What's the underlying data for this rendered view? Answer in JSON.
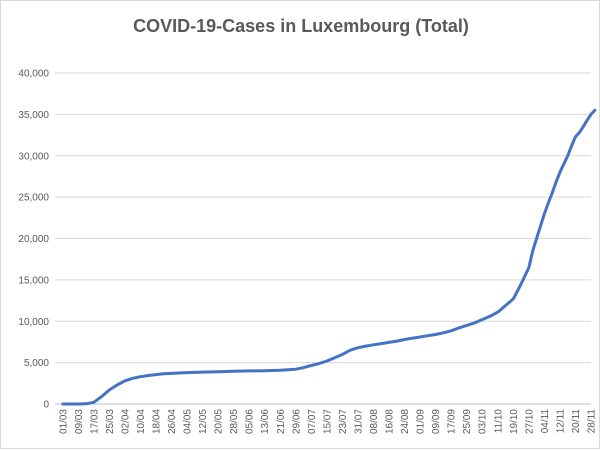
{
  "chart_data": {
    "type": "line",
    "title": "COVID-19-Cases in Luxembourg (Total)",
    "xlabel": "",
    "ylabel": "",
    "ylim": [
      0,
      40000
    ],
    "yticks": [
      "0",
      "5,000",
      "10,000",
      "15,000",
      "20,000",
      "25,000",
      "30,000",
      "35,000",
      "40,000"
    ],
    "xticks": [
      "01/03",
      "09/03",
      "17/03",
      "25/03",
      "02/04",
      "10/04",
      "18/04",
      "26/04",
      "04/05",
      "12/05",
      "20/05",
      "28/05",
      "05/06",
      "13/06",
      "21/06",
      "29/06",
      "07/07",
      "15/07",
      "23/07",
      "31/07",
      "08/08",
      "16/08",
      "24/08",
      "01/09",
      "09/09",
      "17/09",
      "25/09",
      "03/10",
      "11/10",
      "19/10",
      "27/10",
      "04/11",
      "12/11",
      "20/11",
      "28/11"
    ],
    "grid": true,
    "legend": "none",
    "line_color": "#4472c4",
    "series": [
      {
        "x": [
          "01/03",
          "09/03",
          "13/03",
          "17/03",
          "21/03",
          "25/03",
          "29/03",
          "02/04",
          "06/04",
          "10/04",
          "14/04",
          "18/04",
          "22/04",
          "26/04",
          "30/04",
          "04/05",
          "12/05",
          "20/05",
          "28/05",
          "05/06",
          "13/06",
          "21/06",
          "29/06",
          "03/07",
          "07/07",
          "11/07",
          "15/07",
          "19/07",
          "23/07",
          "27/07",
          "31/07",
          "04/08",
          "08/08",
          "12/08",
          "16/08",
          "20/08",
          "24/08",
          "28/08",
          "01/09",
          "05/09",
          "09/09",
          "13/09",
          "17/09",
          "21/09",
          "25/09",
          "29/09",
          "03/10",
          "07/10",
          "11/10",
          "15/10",
          "19/10",
          "23/10",
          "25/10",
          "27/10",
          "29/10",
          "31/10",
          "02/11",
          "04/11",
          "06/11",
          "08/11",
          "10/11",
          "12/11",
          "14/11",
          "16/11",
          "18/11",
          "20/11",
          "22/11",
          "24/11",
          "26/11",
          "28/11",
          "30/11"
        ],
        "values": [
          0,
          5,
          30,
          200,
          900,
          1700,
          2300,
          2800,
          3100,
          3300,
          3450,
          3550,
          3650,
          3700,
          3750,
          3800,
          3850,
          3900,
          3950,
          4000,
          4020,
          4080,
          4200,
          4400,
          4650,
          4900,
          5200,
          5600,
          6000,
          6500,
          6800,
          7000,
          7150,
          7300,
          7450,
          7600,
          7800,
          7950,
          8100,
          8250,
          8400,
          8600,
          8850,
          9200,
          9500,
          9800,
          10200,
          10600,
          11100,
          11900,
          12700,
          14500,
          15500,
          16500,
          18500,
          20000,
          21500,
          23000,
          24300,
          25500,
          26800,
          28000,
          29000,
          30000,
          31200,
          32300,
          32800,
          33500,
          34300,
          35000,
          35500
        ]
      }
    ]
  }
}
